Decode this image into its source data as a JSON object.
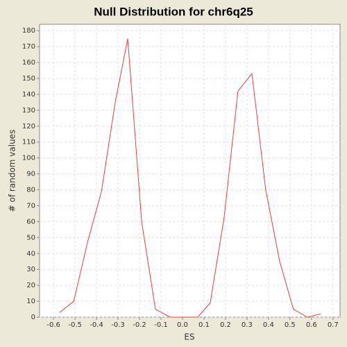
{
  "chart_data": {
    "type": "line",
    "title": "Null Distribution for chr6q25",
    "x_label": "ES",
    "y_label": "# of random values",
    "x": [
      -0.571,
      -0.506,
      -0.442,
      -0.377,
      -0.313,
      -0.255,
      -0.19,
      -0.126,
      -0.058,
      0.006,
      0.071,
      0.129,
      0.194,
      0.258,
      0.323,
      0.387,
      0.452,
      0.516,
      0.581,
      0.642
    ],
    "series": [
      {
        "color": "#f03c3c",
        "values": [
          3,
          10,
          47,
          79,
          135,
          175,
          60,
          5,
          0,
          0,
          0,
          9,
          63,
          142,
          153,
          80,
          35,
          5,
          0,
          2
        ]
      }
    ],
    "xlim": [
      -0.665,
      0.733
    ],
    "ylim": [
      0,
      184
    ],
    "xticks": [
      -0.6,
      -0.5,
      -0.4,
      -0.3,
      -0.2,
      -0.1,
      {
        "value": 0,
        "label": "0.0"
      },
      0.1,
      0.2,
      0.3,
      0.4,
      0.5,
      0.6,
      0.7
    ],
    "yticks": [
      0,
      10,
      20,
      30,
      40,
      50,
      60,
      70,
      80,
      90,
      100,
      110,
      120,
      130,
      140,
      150,
      160,
      170,
      180
    ],
    "grid": true
  }
}
